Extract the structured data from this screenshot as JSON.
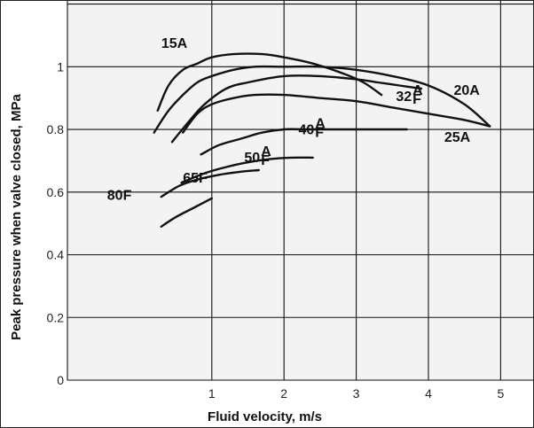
{
  "chart_data": {
    "type": "line",
    "xlabel": "Fluid velocity, m/s",
    "ylabel": "Peak pressure when valve closed, MPa",
    "xlim": [
      -1,
      5.45
    ],
    "ylim": [
      0,
      1.21
    ],
    "x_ticks": [
      "1",
      "2",
      "3",
      "4",
      "5"
    ],
    "y_ticks": [
      "0",
      "0.2",
      "0.4",
      "0.6",
      "0.8",
      "1"
    ],
    "grid": true,
    "series": [
      {
        "name": "15A",
        "x": [
          0.25,
          0.4,
          0.6,
          0.8,
          1.0,
          1.3,
          1.7,
          2.0,
          2.4,
          2.8,
          3.1,
          3.35
        ],
        "y": [
          0.86,
          0.94,
          0.99,
          1.01,
          1.03,
          1.04,
          1.04,
          1.03,
          1.01,
          0.98,
          0.95,
          0.91
        ]
      },
      {
        "name": "20A",
        "x": [
          0.2,
          0.4,
          0.6,
          0.8,
          1.0,
          1.3,
          1.6,
          2.0,
          2.5,
          3.0,
          3.5,
          4.0,
          4.5,
          4.85
        ],
        "y": [
          0.79,
          0.86,
          0.91,
          0.95,
          0.97,
          0.99,
          1.0,
          1.0,
          1.0,
          0.99,
          0.97,
          0.94,
          0.88,
          0.81
        ]
      },
      {
        "name": "32",
        "x": [
          0.45,
          0.7,
          0.9,
          1.2,
          1.5,
          2.0,
          2.5,
          3.0,
          3.3,
          3.6,
          3.9
        ],
        "y": [
          0.76,
          0.83,
          0.88,
          0.93,
          0.95,
          0.97,
          0.97,
          0.96,
          0.95,
          0.94,
          0.93
        ]
      },
      {
        "name": "25A",
        "x": [
          0.6,
          0.8,
          1.0,
          1.3,
          1.6,
          2.0,
          2.5,
          3.0,
          3.5,
          4.0,
          4.5,
          4.85
        ],
        "y": [
          0.79,
          0.85,
          0.88,
          0.9,
          0.91,
          0.91,
          0.9,
          0.89,
          0.87,
          0.85,
          0.83,
          0.81
        ]
      },
      {
        "name": "40",
        "x": [
          0.85,
          1.1,
          1.4,
          1.7,
          2.0,
          2.3,
          2.6,
          3.0,
          3.4,
          3.7
        ],
        "y": [
          0.72,
          0.75,
          0.77,
          0.79,
          0.8,
          0.8,
          0.8,
          0.8,
          0.8,
          0.8
        ]
      },
      {
        "name": "50",
        "x": [
          0.58,
          0.9,
          1.2,
          1.5,
          1.8,
          2.1,
          2.4
        ],
        "y": [
          0.63,
          0.66,
          0.68,
          0.695,
          0.705,
          0.71,
          0.71
        ]
      },
      {
        "name": "65F",
        "x": [
          0.3,
          0.55,
          0.8,
          1.1,
          1.4,
          1.65
        ],
        "y": [
          0.585,
          0.62,
          0.64,
          0.655,
          0.665,
          0.67
        ]
      },
      {
        "name": "80F",
        "x": [
          0.3,
          0.5,
          0.75,
          1.0
        ],
        "y": [
          0.49,
          0.52,
          0.55,
          0.58
        ]
      }
    ],
    "series_labels": [
      {
        "text": "15A",
        "x": 0.3,
        "y": 1.06,
        "sup": "",
        "sub": ""
      },
      {
        "text": "20A",
        "x": 4.35,
        "y": 0.91,
        "sup": "",
        "sub": ""
      },
      {
        "text": "32",
        "x": 3.55,
        "y": 0.89,
        "sup": "A",
        "sub": "F"
      },
      {
        "text": "25A",
        "x": 4.22,
        "y": 0.76,
        "sup": "",
        "sub": ""
      },
      {
        "text": "40",
        "x": 2.2,
        "y": 0.785,
        "sup": "A",
        "sub": "F"
      },
      {
        "text": "50",
        "x": 1.45,
        "y": 0.695,
        "sup": "A",
        "sub": "F"
      },
      {
        "text": "65F",
        "x": 0.6,
        "y": 0.63,
        "sup": "",
        "sub": ""
      },
      {
        "text": "80F",
        "x": -0.45,
        "y": 0.575,
        "sup": "",
        "sub": ""
      }
    ]
  }
}
